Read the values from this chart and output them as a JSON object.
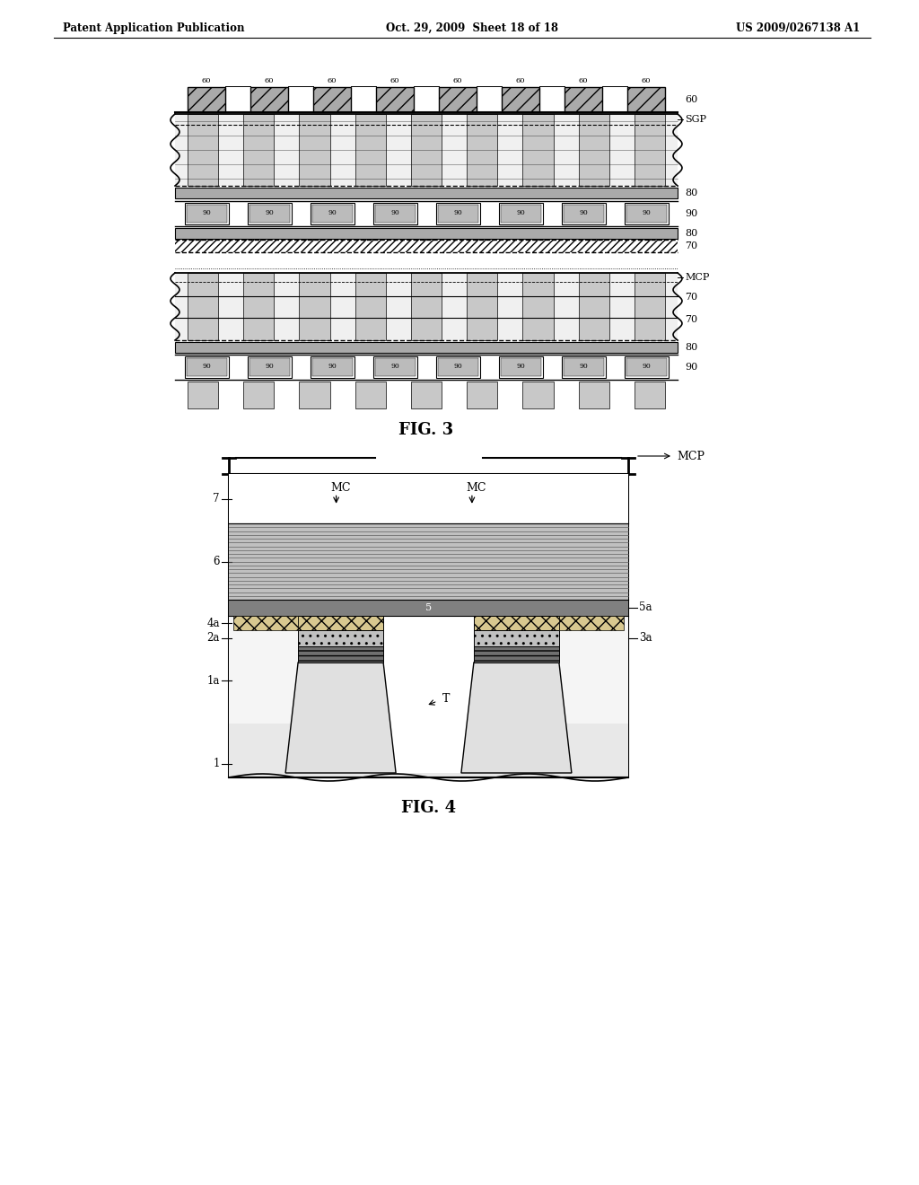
{
  "header_left": "Patent Application Publication",
  "header_mid": "Oct. 29, 2009  Sheet 18 of 18",
  "header_right": "US 2009/0267138 A1",
  "fig3_label": "FIG. 3",
  "fig4_label": "FIG. 4",
  "bg_color": "#ffffff",
  "line_color": "#000000"
}
